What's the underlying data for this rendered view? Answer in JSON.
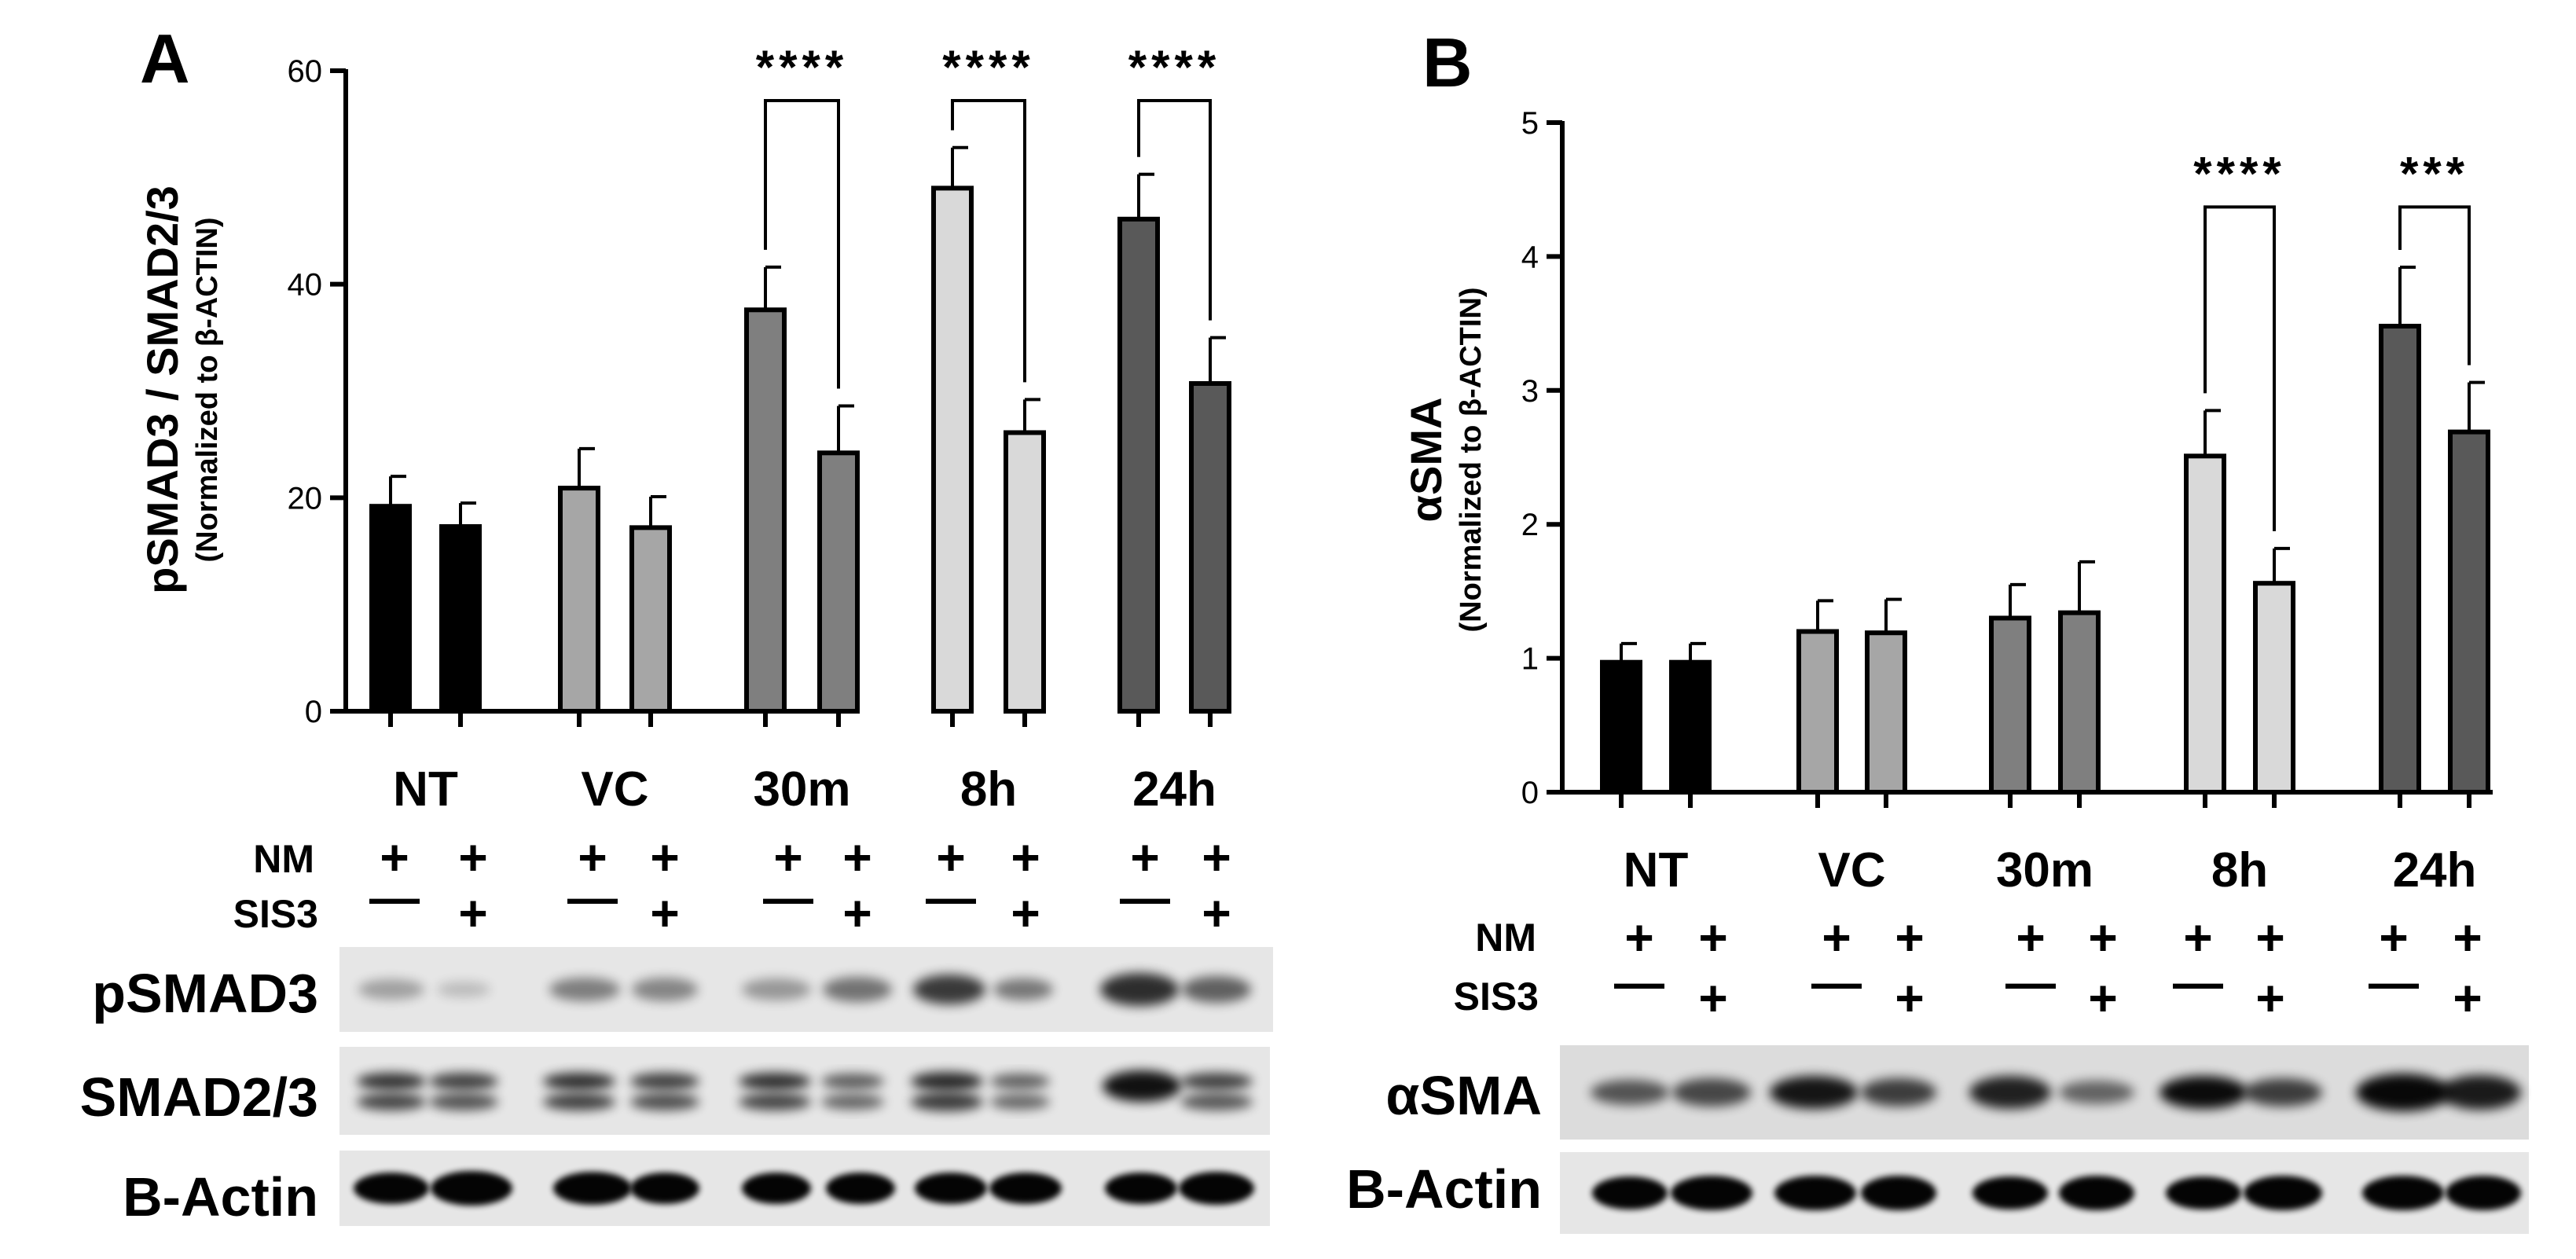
{
  "panels": {
    "A": {
      "letter": "A"
    },
    "B": {
      "letter": "B"
    }
  },
  "treatment_rows": {
    "nm_label": "NM",
    "sis3_label": "SIS3",
    "nm_signs": [
      "+",
      "+",
      "+",
      "+",
      "+",
      "+",
      "+",
      "+",
      "+",
      "+"
    ],
    "sis3_signs": [
      "—",
      "+",
      "—",
      "+",
      "—",
      "+",
      "—",
      "+",
      "—",
      "+"
    ]
  },
  "colors": {
    "NT": "#000000",
    "VC": "#a6a6a6",
    "30m": "#7f7f7f",
    "8h": "#d9d9d9",
    "24h": "#595959",
    "blot_bg": "#e6e6e6"
  },
  "blots": {
    "A": {
      "rows": [
        "pSMAD3",
        "SMAD2/3",
        "B-Actin"
      ]
    },
    "B": {
      "rows": [
        "αSMA",
        "B-Actin"
      ]
    }
  },
  "chart_data": [
    {
      "type": "bar",
      "panel": "A",
      "ylabel": "pSMAD3 / SMAD2/3",
      "ylabel_sub": "(Normalized to β-ACTIN)",
      "ylim": [
        0,
        60
      ],
      "yticks": [
        0,
        20,
        40,
        60
      ],
      "categories": [
        "NT",
        "VC",
        "30m",
        "8h",
        "24h"
      ],
      "series": [
        {
          "name": "",
          "values": [
            19.2,
            20.9,
            37.6,
            49.0,
            46.1
          ],
          "errors": [
            2.8,
            3.7,
            4.0,
            3.8,
            4.2
          ]
        },
        {
          "name": "",
          "values": [
            17.3,
            17.2,
            24.2,
            26.1,
            30.7
          ],
          "errors": [
            2.2,
            2.9,
            4.4,
            3.1,
            4.3
          ]
        }
      ],
      "significance": [
        {
          "category": "30m",
          "label": "****"
        },
        {
          "category": "8h",
          "label": "****"
        },
        {
          "category": "24h",
          "label": "****"
        }
      ]
    },
    {
      "type": "bar",
      "panel": "B",
      "ylabel": "αSMA",
      "ylabel_sub": "(Normalized to β-ACTIN)",
      "ylim": [
        0,
        5
      ],
      "yticks": [
        0,
        1,
        2,
        3,
        4,
        5
      ],
      "categories": [
        "NT",
        "VC",
        "30m",
        "8h",
        "24h"
      ],
      "series": [
        {
          "name": "",
          "values": [
            0.97,
            1.2,
            1.3,
            2.51,
            3.48
          ],
          "errors": [
            0.14,
            0.23,
            0.25,
            0.34,
            0.44
          ]
        },
        {
          "name": "",
          "values": [
            0.97,
            1.19,
            1.34,
            1.56,
            2.69
          ],
          "errors": [
            0.14,
            0.25,
            0.38,
            0.26,
            0.37
          ]
        }
      ],
      "significance": [
        {
          "category": "8h",
          "label": "****"
        },
        {
          "category": "24h",
          "label": "***"
        }
      ]
    }
  ]
}
